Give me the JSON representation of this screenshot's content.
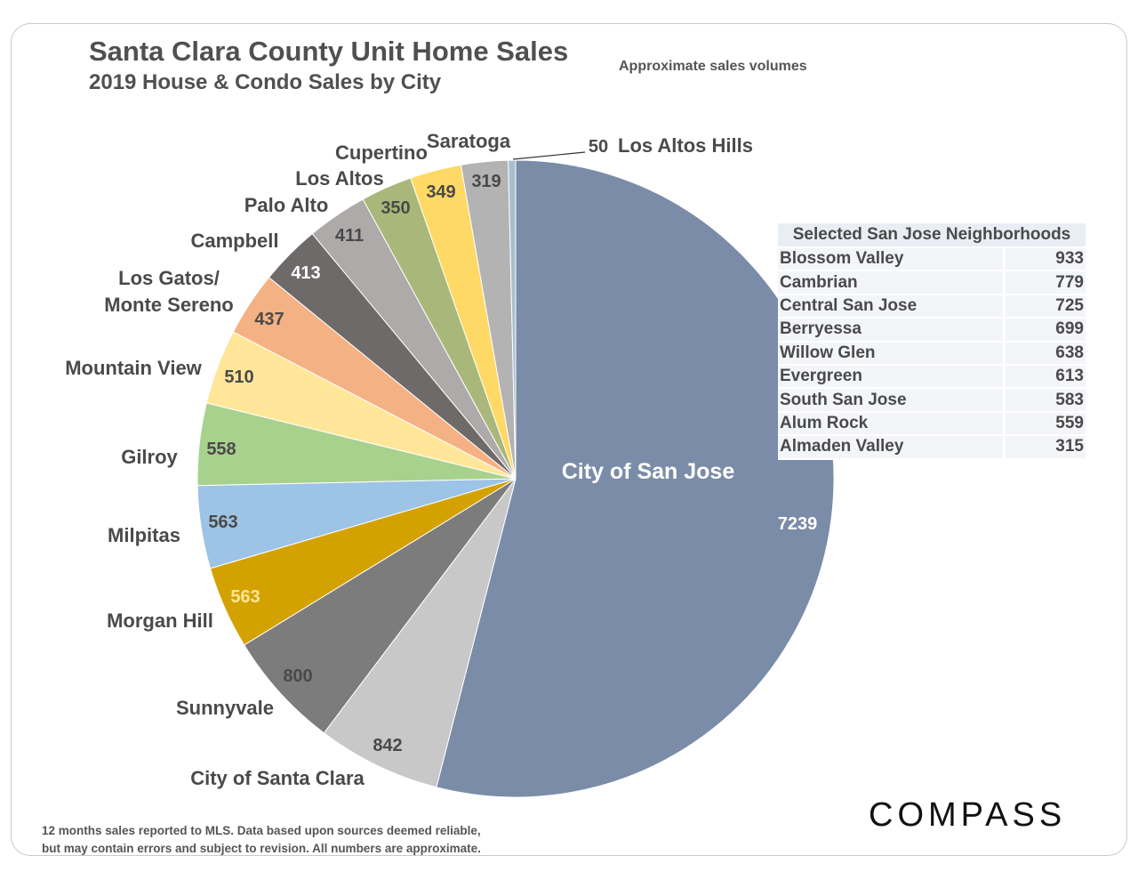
{
  "header": {
    "title": "Santa Clara County Unit Home Sales",
    "subtitle": "2019 House & Condo Sales by City",
    "note": "Approximate sales volumes"
  },
  "chart_data": {
    "type": "pie",
    "title": "Santa Clara County Unit Home Sales",
    "subtitle": "2019 House & Condo Sales by City",
    "slices": [
      {
        "label": "City of San Jose",
        "value": 7239,
        "color": "#7a8ca8"
      },
      {
        "label": "City of Santa Clara",
        "value": 842,
        "color": "#c8c8c8"
      },
      {
        "label": "Sunnyvale",
        "value": 800,
        "color": "#7c7c7c"
      },
      {
        "label": "Morgan Hill",
        "value": 563,
        "color": "#d4a200"
      },
      {
        "label": "Milpitas",
        "value": 563,
        "color": "#9dc3e6"
      },
      {
        "label": "Gilroy",
        "value": 558,
        "color": "#a9d18e"
      },
      {
        "label": "Mountain View",
        "value": 510,
        "color": "#ffe699"
      },
      {
        "label": "Los Gatos/ Monte Sereno",
        "value": 437,
        "color": "#f4b183"
      },
      {
        "label": "Campbell",
        "value": 413,
        "color": "#6f6a6a"
      },
      {
        "label": "Palo Alto",
        "value": 411,
        "color": "#aeaaaa"
      },
      {
        "label": "Los Altos",
        "value": 350,
        "color": "#a9b87a"
      },
      {
        "label": "Cupertino",
        "value": 349,
        "color": "#ffd966"
      },
      {
        "label": "Saratoga",
        "value": 319,
        "color": "#b3b3b3"
      },
      {
        "label": "Los Altos Hills",
        "value": 50,
        "color": "#a8bfd0"
      }
    ]
  },
  "neighborhoods": {
    "title": "Selected San Jose Neighborhoods",
    "rows": [
      {
        "name": "Blossom Valley",
        "value": "933"
      },
      {
        "name": "Cambrian",
        "value": "779"
      },
      {
        "name": "Central San Jose",
        "value": "725"
      },
      {
        "name": "Berryessa",
        "value": "699"
      },
      {
        "name": "Willow Glen",
        "value": "638"
      },
      {
        "name": "Evergreen",
        "value": "613"
      },
      {
        "name": "South San Jose",
        "value": "583"
      },
      {
        "name": "Alum Rock",
        "value": "559"
      },
      {
        "name": "Almaden Valley",
        "value": "315"
      }
    ]
  },
  "footnote": {
    "line1": "12 months sales reported to MLS. Data based upon sources deemed reliable,",
    "line2": "but may contain errors and subject to revision. All numbers are approximate."
  },
  "logo": {
    "text": "COMPASS"
  }
}
